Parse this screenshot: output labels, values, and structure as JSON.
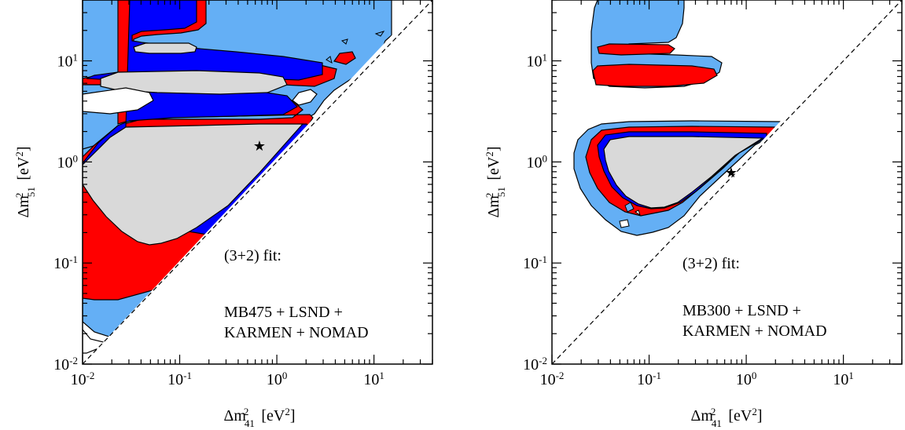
{
  "chart_data": [
    {
      "type": "contour",
      "x_scale": "log",
      "y_scale": "log",
      "xlim": [
        0.01,
        40
      ],
      "ylim": [
        0.01,
        40
      ],
      "xticks": [
        {
          "value": 0.01,
          "base": "10",
          "exp": "-2"
        },
        {
          "value": 0.1,
          "base": "10",
          "exp": "-1"
        },
        {
          "value": 1,
          "base": "10",
          "exp": "0"
        },
        {
          "value": 10,
          "base": "10",
          "exp": "1"
        }
      ],
      "yticks": [
        {
          "value": 0.01,
          "base": "10",
          "exp": "-2"
        },
        {
          "value": 0.1,
          "base": "10",
          "exp": "-1"
        },
        {
          "value": 1,
          "base": "10",
          "exp": "0"
        },
        {
          "value": 10,
          "base": "10",
          "exp": "1"
        }
      ],
      "xlabel": {
        "main": "Δm",
        "sup": "2",
        "sub": "41",
        "unit": "[eV",
        "unit_sup": "2",
        "unit_close": "]"
      },
      "ylabel": {
        "main": "Δm",
        "sup": "2",
        "sub": "51",
        "unit": "[eV",
        "unit_sup": "2",
        "unit_close": "]"
      },
      "annotation_lines": [
        "(3+2) fit:",
        "MB475 + LSND +",
        "KARMEN + NOMAD"
      ],
      "best_fit": {
        "x": 0.66,
        "y": 1.4
      },
      "colors": {
        "outer": "#64aff5",
        "mid": "#ff0000",
        "inner": "#0000ff",
        "core": "#d9d9d9"
      }
    },
    {
      "type": "contour",
      "x_scale": "log",
      "y_scale": "log",
      "xlim": [
        0.01,
        40
      ],
      "ylim": [
        0.01,
        40
      ],
      "xticks": [
        {
          "value": 0.01,
          "base": "10",
          "exp": "-2"
        },
        {
          "value": 0.1,
          "base": "10",
          "exp": "-1"
        },
        {
          "value": 1,
          "base": "10",
          "exp": "0"
        },
        {
          "value": 10,
          "base": "10",
          "exp": "1"
        }
      ],
      "yticks": [
        {
          "value": 0.01,
          "base": "10",
          "exp": "-2"
        },
        {
          "value": 0.1,
          "base": "10",
          "exp": "-1"
        },
        {
          "value": 1,
          "base": "10",
          "exp": "0"
        },
        {
          "value": 10,
          "base": "10",
          "exp": "1"
        }
      ],
      "xlabel": {
        "main": "Δm",
        "sup": "2",
        "sub": "41",
        "unit": "[eV",
        "unit_sup": "2",
        "unit_close": "]"
      },
      "ylabel": {
        "main": "Δm",
        "sup": "2",
        "sub": "51",
        "unit": "[eV",
        "unit_sup": "2",
        "unit_close": "]"
      },
      "annotation_lines": [
        "(3+2) fit:",
        "MB300 + LSND +",
        "KARMEN + NOMAD"
      ],
      "best_fit": {
        "x": 0.65,
        "y": 0.75
      },
      "colors": {
        "outer": "#64aff5",
        "mid": "#ff0000",
        "inner": "#0000ff",
        "core": "#d9d9d9"
      }
    }
  ]
}
